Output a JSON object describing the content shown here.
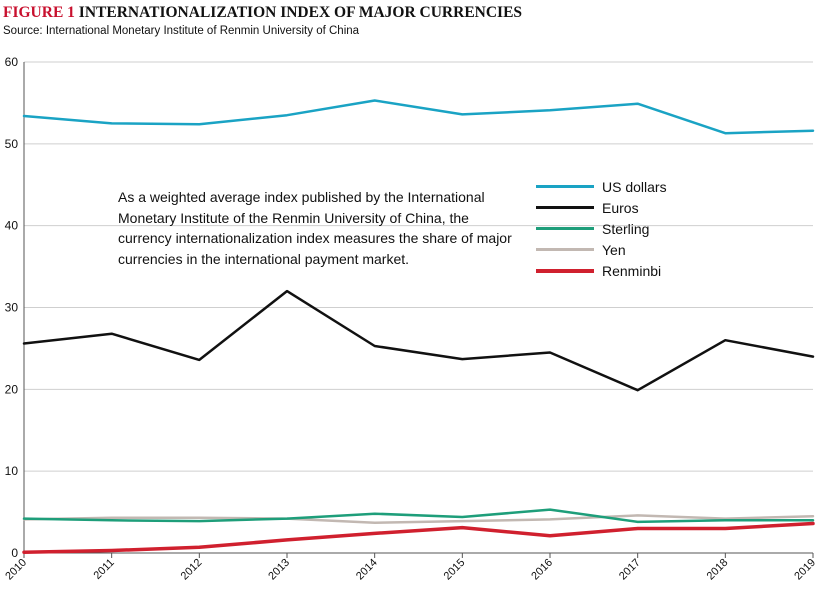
{
  "figure": {
    "label": "FIGURE 1",
    "title": "INTERNATIONALIZATION INDEX OF MAJOR CURRENCIES",
    "source": "Source: International Monetary Institute of Renmin University of China",
    "annotation": "As a weighted average index published by the International Monetary Institute of the Renmin University of China, the currency internationalization index measures the share of major currencies in the international payment market."
  },
  "chart_data": {
    "type": "line",
    "x": [
      "2010",
      "2011",
      "2012",
      "2013",
      "2014",
      "2015",
      "2016",
      "2017",
      "2018",
      "2019"
    ],
    "ylim": [
      0,
      60
    ],
    "yticks": [
      0,
      10,
      20,
      30,
      40,
      50,
      60
    ],
    "grid": "horizontal",
    "legend_position": "right",
    "series": [
      {
        "name": "US dollars",
        "color": "#1aa3c4",
        "values": [
          53.4,
          52.5,
          52.4,
          53.5,
          55.3,
          53.6,
          54.1,
          54.9,
          51.3,
          51.6
        ]
      },
      {
        "name": "Euros",
        "color": "#111111",
        "values": [
          25.6,
          26.8,
          23.6,
          32.0,
          25.3,
          23.7,
          24.5,
          19.9,
          26.0,
          24.0
        ]
      },
      {
        "name": "Sterling",
        "color": "#1e9e7a",
        "values": [
          4.2,
          4.0,
          3.9,
          4.2,
          4.8,
          4.4,
          5.3,
          3.8,
          4.0,
          4.0
        ]
      },
      {
        "name": "Yen",
        "color": "#c2b8b2",
        "values": [
          4.1,
          4.3,
          4.3,
          4.2,
          3.7,
          3.9,
          4.1,
          4.6,
          4.2,
          4.5
        ]
      },
      {
        "name": "Renminbi",
        "color": "#d0202e",
        "values": [
          0.1,
          0.3,
          0.7,
          1.6,
          2.4,
          3.1,
          2.1,
          3.0,
          3.0,
          3.6
        ]
      }
    ]
  }
}
